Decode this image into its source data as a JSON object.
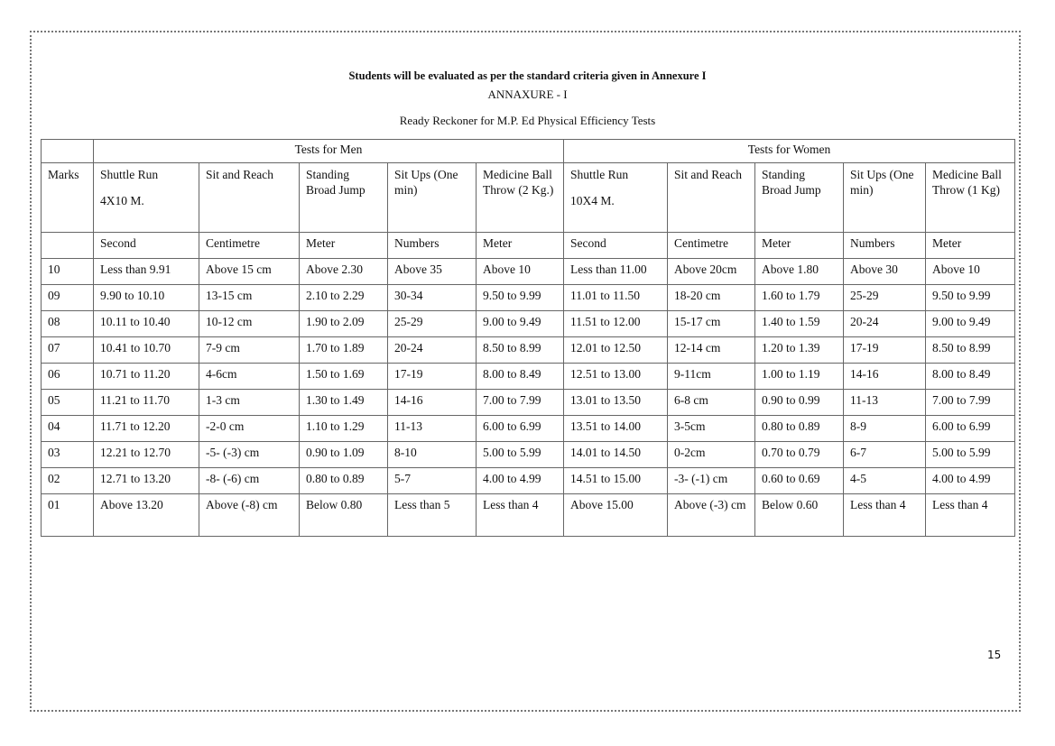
{
  "heading": "Students will be evaluated as per the standard criteria given in Annexure I",
  "annexure": "ANNAXURE - I",
  "caption": "Ready Reckoner for M.P. Ed Physical Efficiency Tests",
  "table": {
    "group_men": "Tests for Men",
    "group_women": "Tests for Women",
    "marks_header": "Marks",
    "columns": [
      {
        "title": "Shuttle Run",
        "sub": "4X10 M.",
        "unit": "Second"
      },
      {
        "title": "Sit and Reach",
        "sub": "",
        "unit": "Centimetre"
      },
      {
        "title": "Standing Broad Jump",
        "sub": "",
        "unit": "Meter"
      },
      {
        "title": "Sit Ups (One min)",
        "sub": "",
        "unit": "Numbers"
      },
      {
        "title": "Medicine Ball Throw (2 Kg.)",
        "sub": "",
        "unit": "Meter"
      },
      {
        "title": "Shuttle Run",
        "sub": "10X4 M.",
        "unit": "Second"
      },
      {
        "title": "Sit and Reach",
        "sub": "",
        "unit": "Centimetre"
      },
      {
        "title": "Standing Broad Jump",
        "sub": "",
        "unit": "Meter"
      },
      {
        "title": "Sit Ups (One min)",
        "sub": "",
        "unit": "Numbers"
      },
      {
        "title": "Medicine Ball Throw (1 Kg)",
        "sub": "",
        "unit": "Meter"
      }
    ],
    "rows": [
      [
        "10",
        "Less than 9.91",
        "Above 15  cm",
        "Above 2.30",
        "Above 35",
        "Above 10",
        "Less than 11.00",
        "Above 20cm",
        "Above 1.80",
        "Above 30",
        "Above 10"
      ],
      [
        "09",
        "9.90 to 10.10",
        "13-15 cm",
        "2.10 to 2.29",
        "30-34",
        "9.50 to 9.99",
        "11.01 to 11.50",
        "18-20 cm",
        "1.60 to 1.79",
        "25-29",
        "9.50 to 9.99"
      ],
      [
        "08",
        "10.11 to 10.40",
        "10-12 cm",
        "1.90 to 2.09",
        "25-29",
        "9.00 to 9.49",
        "11.51 to 12.00",
        "15-17 cm",
        "1.40 to 1.59",
        "20-24",
        "9.00 to 9.49"
      ],
      [
        "07",
        "10.41 to 10.70",
        "7-9 cm",
        "1.70 to 1.89",
        "20-24",
        "8.50 to 8.99",
        "12.01 to 12.50",
        "12-14 cm",
        "1.20 to 1.39",
        "17-19",
        "8.50 to 8.99"
      ],
      [
        "06",
        "10.71 to 11.20",
        "4-6cm",
        "1.50 to 1.69",
        "17-19",
        "8.00 to 8.49",
        "12.51 to 13.00",
        "9-11cm",
        "1.00 to 1.19",
        "14-16",
        "8.00 to 8.49"
      ],
      [
        "05",
        "11.21 to 11.70",
        "1-3 cm",
        "1.30 to 1.49",
        "14-16",
        "7.00 to 7.99",
        "13.01 to 13.50",
        "6-8 cm",
        "0.90 to 0.99",
        "11-13",
        "7.00 to 7.99"
      ],
      [
        "04",
        "11.71 to 12.20",
        "-2-0 cm",
        "1.10 to 1.29",
        "11-13",
        "6.00 to 6.99",
        "13.51 to 14.00",
        "3-5cm",
        "0.80 to 0.89",
        "8-9",
        "6.00 to 6.99"
      ],
      [
        "03",
        "12.21 to 12.70",
        "-5- (-3) cm",
        "0.90 to 1.09",
        "8-10",
        "5.00 to 5.99",
        "14.01 to 14.50",
        "0-2cm",
        "0.70 to 0.79",
        "6-7",
        "5.00 to 5.99"
      ],
      [
        "02",
        "12.71 to 13.20",
        "-8- (-6) cm",
        "0.80 to 0.89",
        "5-7",
        "4.00 to 4.99",
        "14.51 to 15.00",
        "-3- (-1) cm",
        "0.60 to 0.69",
        "4-5",
        "4.00 to 4.99"
      ],
      [
        "01",
        "Above 13.20",
        "Above (-8) cm",
        "Below 0.80",
        "Less than 5",
        "Less than 4",
        "Above 15.00",
        "Above (-3) cm",
        "Below 0.60",
        "Less than 4",
        "Less than 4"
      ]
    ]
  },
  "page_number": "15"
}
